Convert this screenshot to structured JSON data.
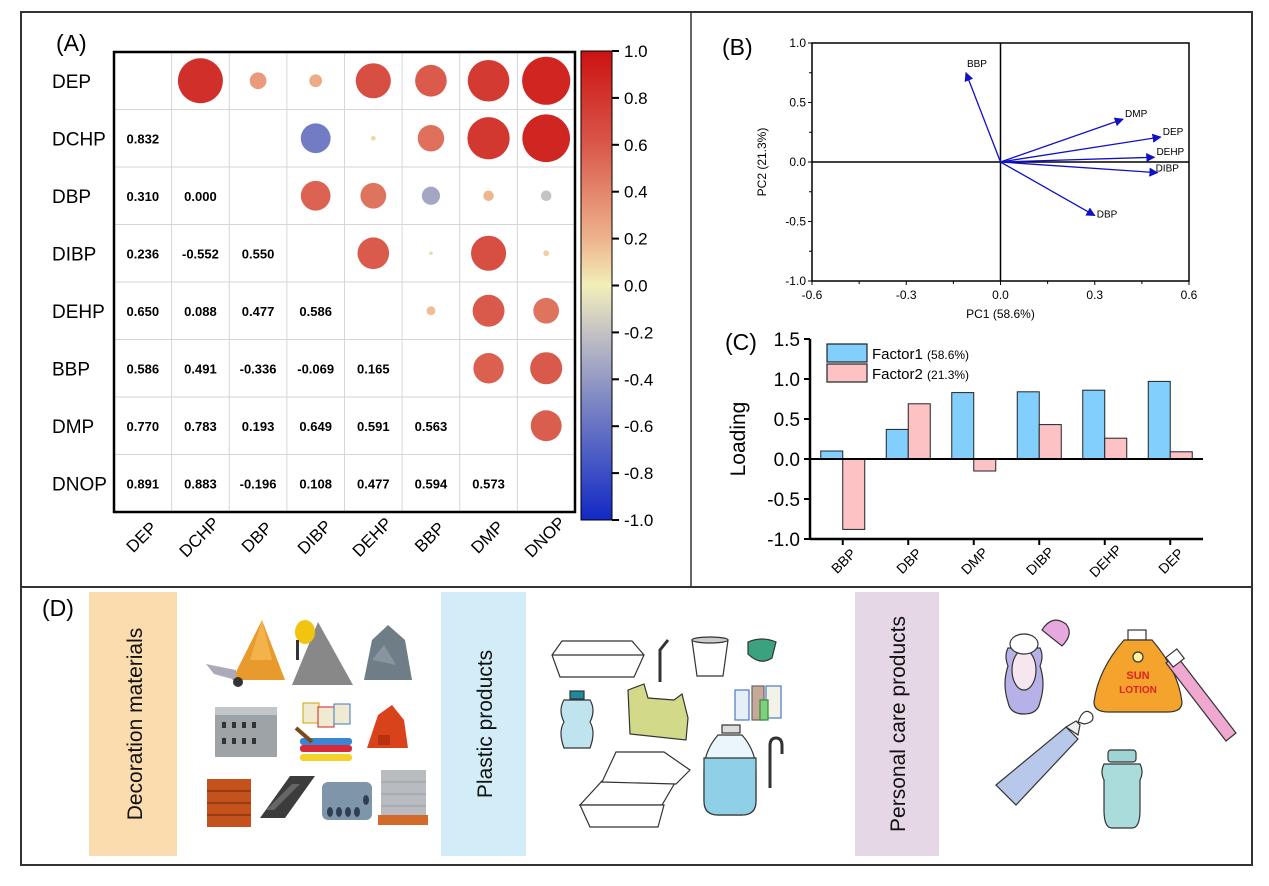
{
  "panels": {
    "a": {
      "label": "(A)"
    },
    "b": {
      "label": "(B)"
    },
    "c": {
      "label": "(C)"
    },
    "d": {
      "label": "(D)"
    }
  },
  "chart_data": [
    {
      "id": "A",
      "type": "heatmap",
      "subtype": "correlation-matrix (lower triangle: numeric values; upper triangle: circles sized & colored by correlation)",
      "variables": [
        "DEP",
        "DCHP",
        "DBP",
        "DIBP",
        "DEHP",
        "BBP",
        "DMP",
        "DNOP"
      ],
      "lower_triangle": [
        [],
        [
          0.832
        ],
        [
          0.31,
          0.0
        ],
        [
          0.236,
          -0.552,
          0.55
        ],
        [
          0.65,
          0.088,
          0.477,
          0.586
        ],
        [
          0.586,
          0.491,
          -0.336,
          -0.069,
          0.165
        ],
        [
          0.77,
          0.783,
          0.193,
          0.649,
          0.591,
          0.563
        ],
        [
          0.891,
          0.883,
          -0.196,
          0.108,
          0.477,
          0.594,
          0.573
        ]
      ],
      "colorbar": {
        "range": [
          -1.0,
          1.0
        ],
        "ticks": [
          "1.0",
          "0.8",
          "0.6",
          "0.4",
          "0.2",
          "0.0",
          "-0.2",
          "-0.4",
          "-0.6",
          "-0.8",
          "-1.0"
        ],
        "colors": {
          "neg": "#1a2fc0",
          "mid": "#f3f0b8",
          "pos": "#cc1515"
        }
      }
    },
    {
      "id": "B",
      "type": "scatter",
      "subtype": "PCA loading biplot (arrows from origin)",
      "xlabel": "PC1 (58.6%)",
      "ylabel": "PC2 (21.3%)",
      "xlim": [
        -0.6,
        0.6
      ],
      "ylim": [
        -1.0,
        1.0
      ],
      "xticks": [
        "-0.6",
        "-0.3",
        "0.0",
        "0.3",
        "0.6"
      ],
      "yticks": [
        "1.0",
        "0.5",
        "0.0",
        "-0.5",
        "-1.0"
      ],
      "arrow_color": "#1010c8",
      "points": [
        {
          "name": "BBP",
          "x": -0.11,
          "y": 0.75
        },
        {
          "name": "DMP",
          "x": 0.39,
          "y": 0.36
        },
        {
          "name": "DEP",
          "x": 0.51,
          "y": 0.21
        },
        {
          "name": "DEHP",
          "x": 0.49,
          "y": 0.04
        },
        {
          "name": "DIBP",
          "x": 0.5,
          "y": -0.09
        },
        {
          "name": "DBP",
          "x": 0.3,
          "y": -0.45
        }
      ]
    },
    {
      "id": "C",
      "type": "bar",
      "ylabel": "Loading",
      "xlabel": "",
      "ylim": [
        -1.0,
        1.5
      ],
      "yticks": [
        "1.5",
        "1.0",
        "0.5",
        "0.0",
        "-0.5",
        "-1.0"
      ],
      "categories": [
        "BBP",
        "DBP",
        "DMP",
        "DIBP",
        "DEHP",
        "DEP"
      ],
      "legend_position": "top-left",
      "series": [
        {
          "name": "Factor1",
          "pct": "(58.6%)",
          "color": "#82cffd",
          "values": [
            0.1,
            0.37,
            0.83,
            0.84,
            0.86,
            0.97
          ]
        },
        {
          "name": "Factor2",
          "pct": "(21.3%)",
          "color": "#fcc2c4",
          "values": [
            -0.88,
            0.69,
            -0.15,
            0.43,
            0.26,
            0.09
          ]
        }
      ]
    }
  ],
  "sources": [
    {
      "label": "Decoration materials",
      "color": "#fbdcae",
      "items": [
        "sand pile with wheelbarrow",
        "cement mixer with gravel",
        "stone pile",
        "hollow concrete blocks",
        "paint buckets and brush",
        "red bricks",
        "clay tiles",
        "steel beams",
        "concrete pipes",
        "stone slabs on pallet"
      ]
    },
    {
      "label": "Plastic products",
      "color": "#d2edf8",
      "items": [
        "foam food box",
        "straw",
        "plastic cup",
        "crumpled plastic",
        "water bottle",
        "plastic bag",
        "bottle group",
        "open foam box",
        "large bottle",
        "bent straw"
      ]
    },
    {
      "label": "Personal care products",
      "color": "#e6d7e6",
      "items": [
        "deodorant",
        "sun lotion",
        "toothbrush",
        "toothpaste tube",
        "mouthwash bottle"
      ],
      "lotion_text": [
        "SUN",
        "LOTION"
      ]
    }
  ]
}
